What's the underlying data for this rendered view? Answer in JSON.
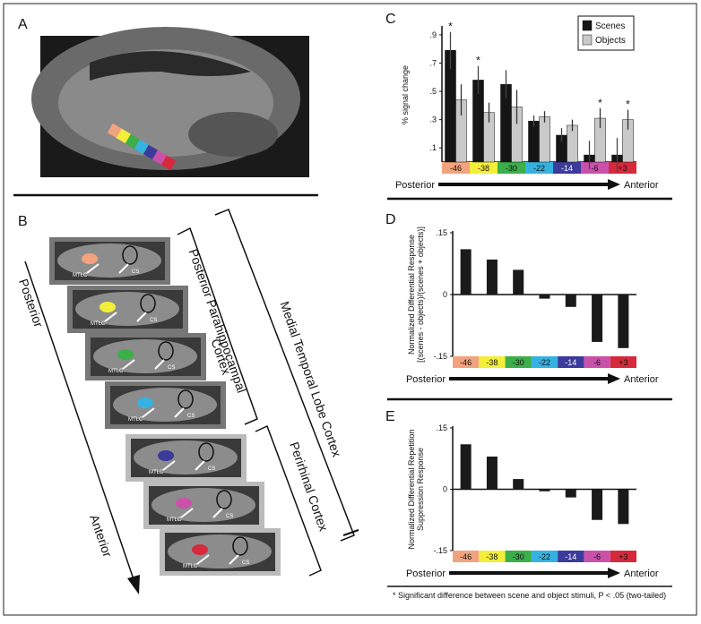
{
  "panels": {
    "a": {
      "letter": "A"
    },
    "b": {
      "letter": "B",
      "start_label": "Posterior",
      "end_label": "Anterior",
      "region_labels": [
        "MTLC",
        "CS"
      ],
      "brackets": [
        "Posterior Parahippocampal",
        "Cortex",
        "Perirhinal Cortex",
        "Medial Temporal Lobe Cortex"
      ]
    }
  },
  "footnote": "* Significant difference between scene and object stimuli, P < .05 (two-tailed)",
  "chart_data": [
    {
      "type": "bar",
      "panel_label": "C",
      "ylabel": "% signal change",
      "legend": "upper right",
      "categories": [
        "-46",
        "-38",
        "-30",
        "-22",
        "-14",
        "-6",
        "+3"
      ],
      "category_colors": [
        "#f2a37e",
        "#f3ee3a",
        "#3cae4a",
        "#36b2e1",
        "#3b3b9b",
        "#c951aa",
        "#d62a3c"
      ],
      "series": [
        {
          "name": "Scenes",
          "color": "#151515",
          "values": [
            0.79,
            0.58,
            0.55,
            0.29,
            0.19,
            0.05,
            0.05
          ],
          "errors": [
            0.13,
            0.1,
            0.1,
            0.04,
            0.05,
            0.1,
            0.12
          ]
        },
        {
          "name": "Objects",
          "color": "#c9c9c9",
          "values": [
            0.44,
            0.35,
            0.39,
            0.32,
            0.26,
            0.31,
            0.3
          ],
          "errors": [
            0.11,
            0.07,
            0.12,
            0.04,
            0.04,
            0.07,
            0.07
          ]
        }
      ],
      "significance": [
        "*",
        "*",
        null,
        null,
        null,
        "*",
        "*"
      ],
      "ylim": [
        0,
        0.95
      ],
      "yticks": [
        {
          "value": 0.1,
          "label": ".1"
        },
        {
          "value": 0.3,
          "label": ".3"
        },
        {
          "value": 0.5,
          "label": ".5"
        },
        {
          "value": 0.7,
          "label": ".7"
        },
        {
          "value": 0.9,
          "label": ".9"
        }
      ],
      "start_label": "Posterior",
      "end_label": "Anterior"
    },
    {
      "type": "bar",
      "panel_label": "D",
      "ylabel": [
        "Normalized Differential Response",
        "[(scenes - objects)/(scenes + objects)]"
      ],
      "categories": [
        "-46",
        "-38",
        "-30",
        "-22",
        "-14",
        "-6",
        "+3"
      ],
      "category_colors": [
        "#f2a37e",
        "#f3ee3a",
        "#3cae4a",
        "#36b2e1",
        "#3b3b9b",
        "#c951aa",
        "#d62a3c"
      ],
      "color": "#1a1a1a",
      "values": [
        0.11,
        0.085,
        0.06,
        -0.01,
        -0.03,
        -0.115,
        -0.13
      ],
      "ylim": [
        -0.15,
        0.15
      ],
      "yticks": [
        {
          "value": -0.15,
          "label": "-.15"
        },
        0,
        {
          "value": 0.15,
          "label": ".15"
        }
      ],
      "start_label": "Posterior",
      "end_label": "Anterior"
    },
    {
      "type": "bar",
      "panel_label": "E",
      "ylabel": [
        "Normalized Differential Repetition",
        "Suppression Response"
      ],
      "categories": [
        "-46",
        "-38",
        "-30",
        "-22",
        "-14",
        "-6",
        "+3"
      ],
      "category_colors": [
        "#f2a37e",
        "#f3ee3a",
        "#3cae4a",
        "#36b2e1",
        "#3b3b9b",
        "#c951aa",
        "#d62a3c"
      ],
      "color": "#1a1a1a",
      "values": [
        0.11,
        0.08,
        0.025,
        -0.005,
        -0.02,
        -0.075,
        -0.085
      ],
      "ylim": [
        -0.15,
        0.15
      ],
      "yticks": [
        {
          "value": -0.15,
          "label": "-.15"
        },
        0,
        {
          "value": 0.15,
          "label": ".15"
        }
      ],
      "start_label": "Posterior",
      "end_label": "Anterior"
    }
  ]
}
